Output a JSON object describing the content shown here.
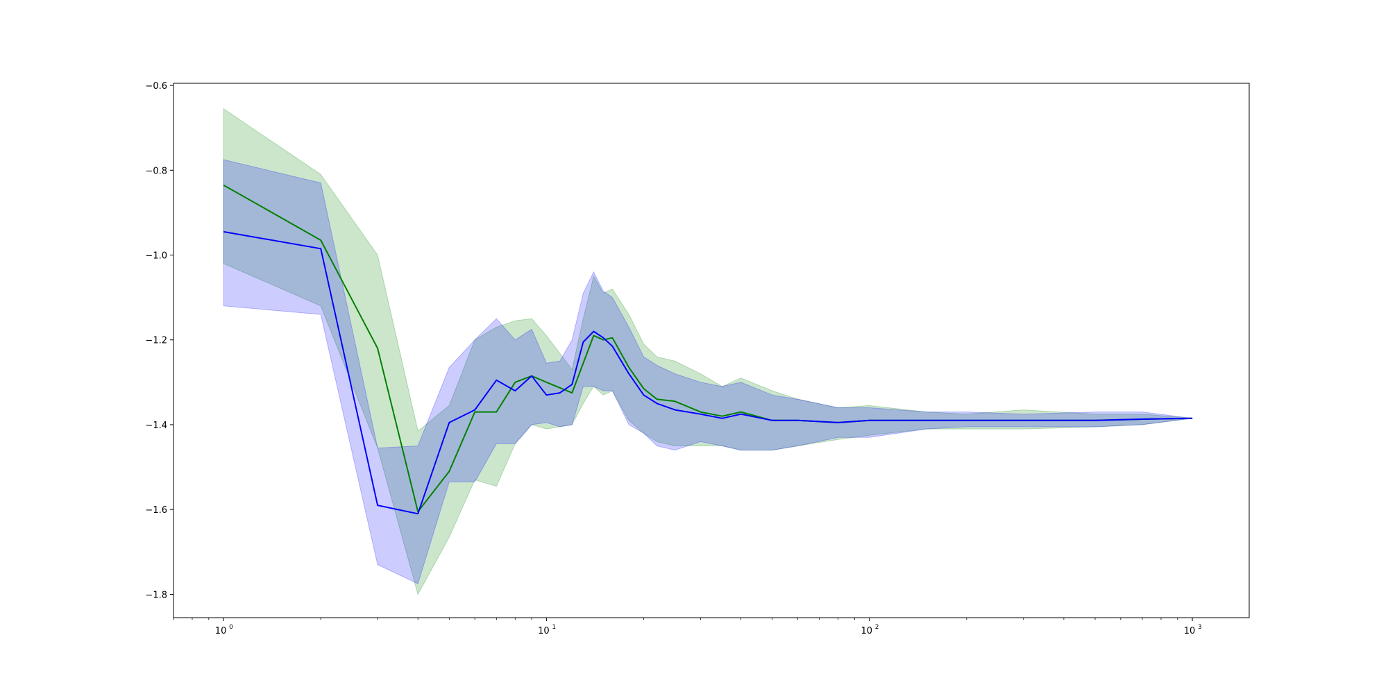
{
  "chart_data": {
    "type": "line",
    "title": "",
    "xlabel": "",
    "ylabel": "",
    "x_scale": "log",
    "xlim": [
      0.7,
      1500
    ],
    "ylim": [
      -1.855,
      -0.595
    ],
    "grid": false,
    "y_ticks": [
      {
        "value": -0.6,
        "label": "−0.6"
      },
      {
        "value": -0.8,
        "label": "−0.8"
      },
      {
        "value": -1.0,
        "label": "−1.0"
      },
      {
        "value": -1.2,
        "label": "−1.2"
      },
      {
        "value": -1.4,
        "label": "−1.4"
      },
      {
        "value": -1.6,
        "label": "−1.6"
      },
      {
        "value": -1.8,
        "label": "−1.8"
      }
    ],
    "x_ticks": [
      {
        "value": 1,
        "base": "10",
        "exp": "0"
      },
      {
        "value": 10,
        "base": "10",
        "exp": "1"
      },
      {
        "value": 100,
        "base": "10",
        "exp": "2"
      },
      {
        "value": 1000,
        "base": "10",
        "exp": "3"
      }
    ],
    "series": [
      {
        "color": "#008000",
        "band_color": "#008000",
        "x": [
          1,
          2,
          3,
          4,
          5,
          6,
          7,
          8,
          9,
          10,
          12,
          13,
          14,
          15,
          16,
          18,
          20,
          22,
          25,
          30,
          35,
          40,
          50,
          60,
          80,
          100,
          150,
          200,
          300,
          500,
          700,
          1000
        ],
        "mean": [
          -0.835,
          -0.965,
          -1.22,
          -1.605,
          -1.51,
          -1.37,
          -1.37,
          -1.3,
          -1.285,
          -1.3,
          -1.325,
          -1.255,
          -1.19,
          -1.2,
          -1.195,
          -1.265,
          -1.315,
          -1.34,
          -1.345,
          -1.37,
          -1.38,
          -1.37,
          -1.39,
          -1.39,
          -1.395,
          -1.39,
          -1.39,
          -1.39,
          -1.39,
          -1.39,
          -1.387,
          -1.385
        ],
        "upper": [
          -0.655,
          -0.81,
          -1.0,
          -1.415,
          -1.355,
          -1.2,
          -1.17,
          -1.155,
          -1.15,
          -1.19,
          -1.27,
          -1.15,
          -1.05,
          -1.09,
          -1.08,
          -1.14,
          -1.21,
          -1.24,
          -1.25,
          -1.28,
          -1.31,
          -1.29,
          -1.32,
          -1.34,
          -1.36,
          -1.355,
          -1.37,
          -1.375,
          -1.365,
          -1.375,
          -1.375,
          -1.385
        ],
        "lower": [
          -1.02,
          -1.12,
          -1.455,
          -1.8,
          -1.665,
          -1.53,
          -1.545,
          -1.445,
          -1.4,
          -1.41,
          -1.4,
          -1.35,
          -1.31,
          -1.33,
          -1.32,
          -1.39,
          -1.42,
          -1.44,
          -1.45,
          -1.45,
          -1.45,
          -1.46,
          -1.46,
          -1.45,
          -1.435,
          -1.425,
          -1.41,
          -1.41,
          -1.41,
          -1.405,
          -1.4,
          -1.385
        ]
      },
      {
        "color": "#0000ff",
        "band_color": "#0000ff",
        "x": [
          1,
          2,
          3,
          4,
          5,
          6,
          7,
          8,
          9,
          10,
          11,
          12,
          13,
          14,
          15,
          16,
          18,
          20,
          22,
          25,
          30,
          35,
          40,
          50,
          60,
          80,
          100,
          150,
          200,
          300,
          500,
          700,
          1000
        ],
        "mean": [
          -0.945,
          -0.985,
          -1.59,
          -1.61,
          -1.395,
          -1.365,
          -1.295,
          -1.32,
          -1.285,
          -1.33,
          -1.325,
          -1.305,
          -1.205,
          -1.18,
          -1.195,
          -1.215,
          -1.28,
          -1.33,
          -1.35,
          -1.365,
          -1.375,
          -1.385,
          -1.375,
          -1.39,
          -1.39,
          -1.395,
          -1.39,
          -1.39,
          -1.39,
          -1.39,
          -1.39,
          -1.387,
          -1.385
        ],
        "upper": [
          -0.775,
          -0.83,
          -1.455,
          -1.45,
          -1.265,
          -1.2,
          -1.15,
          -1.2,
          -1.175,
          -1.255,
          -1.25,
          -1.2,
          -1.09,
          -1.04,
          -1.085,
          -1.1,
          -1.17,
          -1.24,
          -1.26,
          -1.28,
          -1.3,
          -1.31,
          -1.3,
          -1.33,
          -1.34,
          -1.36,
          -1.36,
          -1.37,
          -1.37,
          -1.375,
          -1.37,
          -1.37,
          -1.385
        ],
        "lower": [
          -1.12,
          -1.14,
          -1.73,
          -1.775,
          -1.535,
          -1.535,
          -1.445,
          -1.445,
          -1.4,
          -1.395,
          -1.405,
          -1.4,
          -1.31,
          -1.31,
          -1.32,
          -1.32,
          -1.4,
          -1.42,
          -1.45,
          -1.46,
          -1.44,
          -1.45,
          -1.46,
          -1.46,
          -1.45,
          -1.43,
          -1.43,
          -1.41,
          -1.405,
          -1.405,
          -1.405,
          -1.4,
          -1.385
        ]
      }
    ]
  }
}
